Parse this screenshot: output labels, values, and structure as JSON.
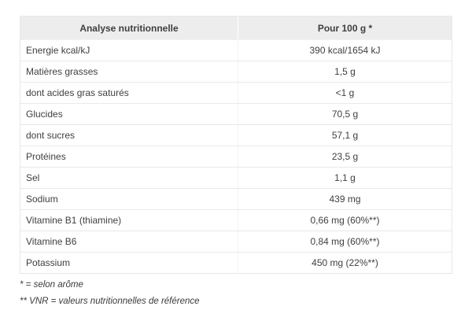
{
  "table": {
    "header": {
      "label": "Analyse nutritionnelle",
      "value": "Pour 100 g *"
    },
    "rows": [
      {
        "label": "Energie kcal/kJ",
        "value": "390 kcal/1654 kJ"
      },
      {
        "label": "Matières grasses",
        "value": "1,5 g"
      },
      {
        "label": "dont acides gras saturés",
        "value": "<1 g"
      },
      {
        "label": "Glucides",
        "value": "70,5 g"
      },
      {
        "label": "dont sucres",
        "value": "57,1 g"
      },
      {
        "label": "Protéines",
        "value": "23,5 g"
      },
      {
        "label": "Sel",
        "value": "1,1 g"
      },
      {
        "label": "Sodium",
        "value": "439 mg"
      },
      {
        "label": "Vitamine B1 (thiamine)",
        "value": "0,66 mg (60%**)"
      },
      {
        "label": "Vitamine B6",
        "value": "0,84 mg (60%**)"
      },
      {
        "label": "Potassium",
        "value": "450 mg (22%**)"
      }
    ]
  },
  "footnotes": [
    "* = selon arôme",
    "** VNR = valeurs nutritionnelles de référence"
  ],
  "colors": {
    "header_bg": "#ededed",
    "border": "#e7e7e7",
    "text": "#3f3f3f"
  }
}
